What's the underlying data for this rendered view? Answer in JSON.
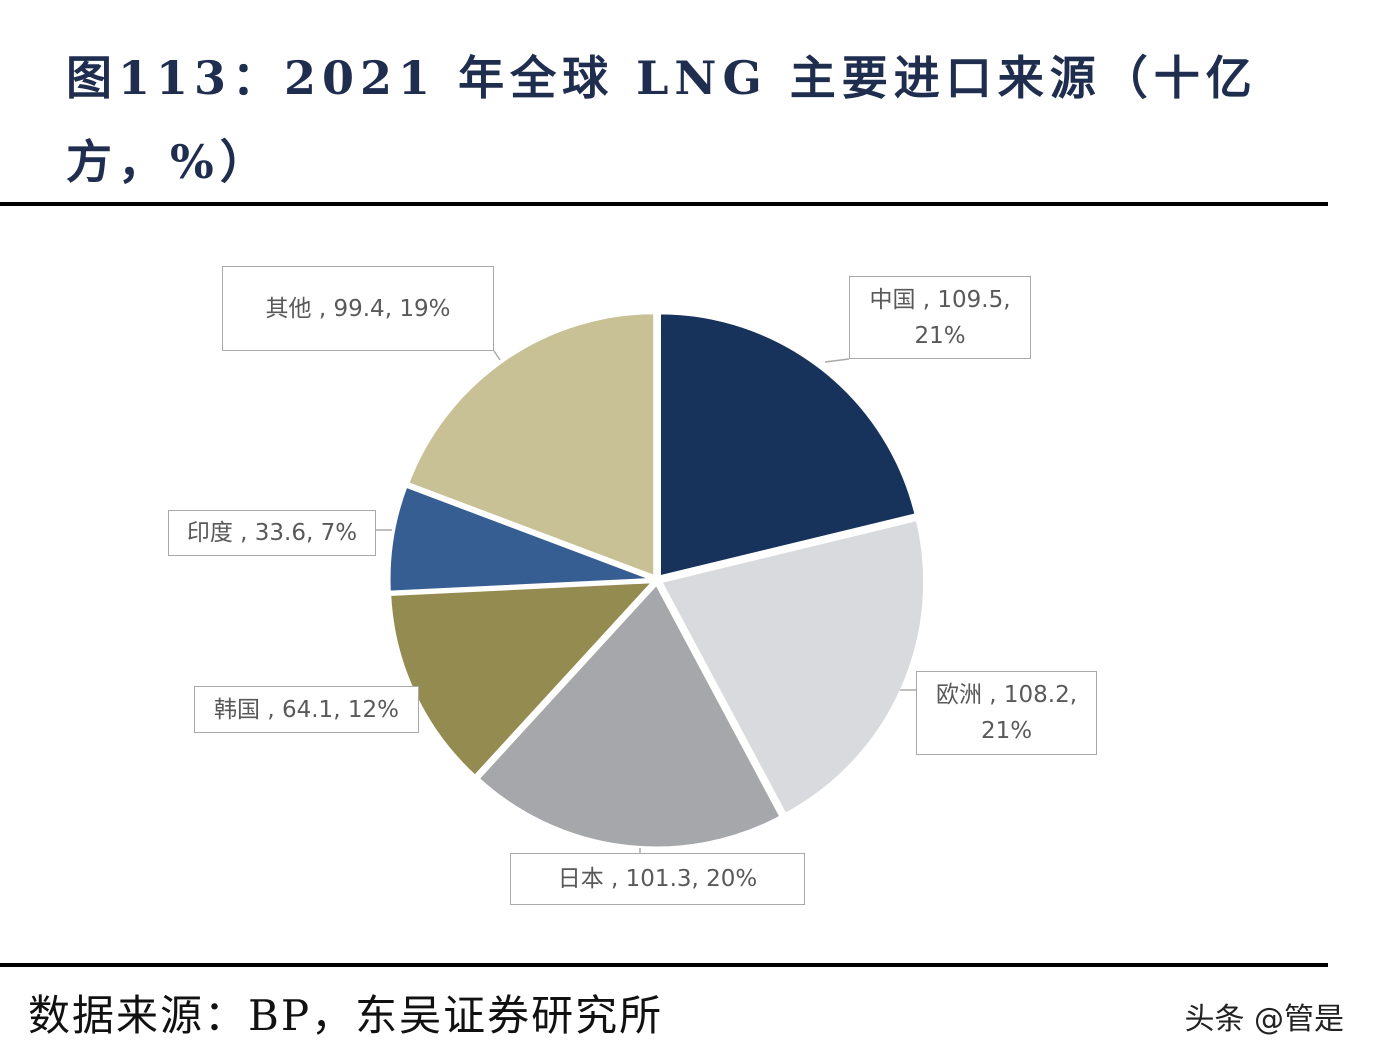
{
  "chart_data": {
    "type": "pie",
    "title": "图113：2021 年全球 LNG 主要进口来源（十亿方，%）",
    "labels": [
      "中国 , 109.5, 21%",
      "欧洲 , 108.2, 21%",
      "日本 , 101.3, 20%",
      "韩国 , 64.1, 12%",
      "印度 , 33.6, 7%",
      "其他 , 99.4, 19%"
    ],
    "values": [
      109.5,
      108.2,
      101.3,
      64.1,
      33.6,
      99.4
    ],
    "colors": [
      "#17335c",
      "#d9dadd",
      "#a6a7ab",
      "#948b50",
      "#375e93",
      "#c8c196"
    ],
    "source": "数据来源：BP，东吴证券研究所",
    "watermark": "头条 @管是"
  }
}
